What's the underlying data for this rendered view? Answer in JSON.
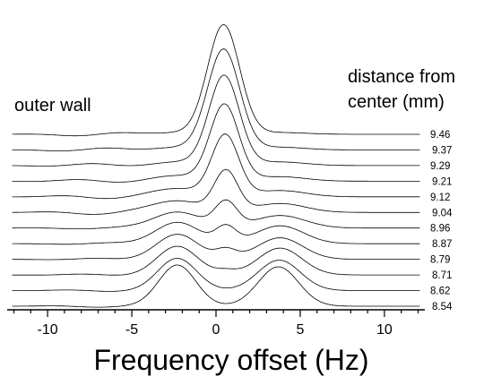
{
  "chart_data": {
    "type": "line",
    "xlabel": "Frequency offset (Hz)",
    "xlim": [
      -12.4,
      12.4
    ],
    "x_ticks": [
      "-10",
      "-5",
      "0",
      "5",
      "10"
    ],
    "annotation_left": "outer wall",
    "annotation_right_line1": "distance from",
    "annotation_right_line2": "center (mm)",
    "series": [
      {
        "name": "9.46",
        "peaks": [
          {
            "x": 0.45,
            "h": 122,
            "w": 0.95
          },
          {
            "x": -2.3,
            "h": 2,
            "w": 1.5
          },
          {
            "x": 3.8,
            "h": 2,
            "w": 1.5
          }
        ]
      },
      {
        "name": "9.37",
        "peaks": [
          {
            "x": 0.45,
            "h": 112,
            "w": 0.95
          },
          {
            "x": -2.3,
            "h": 3,
            "w": 1.5
          },
          {
            "x": 3.8,
            "h": 3,
            "w": 1.5
          }
        ]
      },
      {
        "name": "9.29",
        "peaks": [
          {
            "x": 0.48,
            "h": 100,
            "w": 0.9
          },
          {
            "x": -2.3,
            "h": 4,
            "w": 1.5
          },
          {
            "x": 3.8,
            "h": 4,
            "w": 1.5
          }
        ]
      },
      {
        "name": "9.21",
        "peaks": [
          {
            "x": 0.5,
            "h": 85,
            "w": 0.85
          },
          {
            "x": -2.3,
            "h": 6,
            "w": 1.5
          },
          {
            "x": 3.8,
            "h": 5,
            "w": 1.5
          }
        ]
      },
      {
        "name": "9.12",
        "peaks": [
          {
            "x": 0.55,
            "h": 68,
            "w": 0.8
          },
          {
            "x": -2.3,
            "h": 9,
            "w": 1.5
          },
          {
            "x": 3.8,
            "h": 7,
            "w": 1.5
          }
        ]
      },
      {
        "name": "9.04",
        "peaks": [
          {
            "x": 0.6,
            "h": 45,
            "w": 0.7
          },
          {
            "x": -2.3,
            "h": 13,
            "w": 1.5
          },
          {
            "x": 3.8,
            "h": 10,
            "w": 1.5
          }
        ]
      },
      {
        "name": "8.96",
        "peaks": [
          {
            "x": 0.6,
            "h": 28,
            "w": 0.65
          },
          {
            "x": -2.3,
            "h": 18,
            "w": 1.4
          },
          {
            "x": 3.8,
            "h": 14,
            "w": 1.5
          }
        ]
      },
      {
        "name": "8.87",
        "peaks": [
          {
            "x": 0.6,
            "h": 18,
            "w": 0.6
          },
          {
            "x": -2.3,
            "h": 24,
            "w": 1.3
          },
          {
            "x": 3.8,
            "h": 20,
            "w": 1.4
          }
        ]
      },
      {
        "name": "8.79",
        "peaks": [
          {
            "x": 0.6,
            "h": 10,
            "w": 0.6
          },
          {
            "x": -2.3,
            "h": 28,
            "w": 1.25
          },
          {
            "x": 3.8,
            "h": 24,
            "w": 1.35
          }
        ]
      },
      {
        "name": "8.71",
        "peaks": [
          {
            "x": 0.6,
            "h": 4,
            "w": 0.6
          },
          {
            "x": -2.3,
            "h": 32,
            "w": 1.2
          },
          {
            "x": 3.8,
            "h": 30,
            "w": 1.3
          }
        ]
      },
      {
        "name": "8.62",
        "peaks": [
          {
            "x": -2.3,
            "h": 36,
            "w": 1.15
          },
          {
            "x": 3.75,
            "h": 34,
            "w": 1.25
          }
        ]
      },
      {
        "name": "8.54",
        "peaks": [
          {
            "x": -2.3,
            "h": 46,
            "w": 1.1
          },
          {
            "x": 3.7,
            "h": 44,
            "w": 1.2
          }
        ]
      }
    ]
  }
}
